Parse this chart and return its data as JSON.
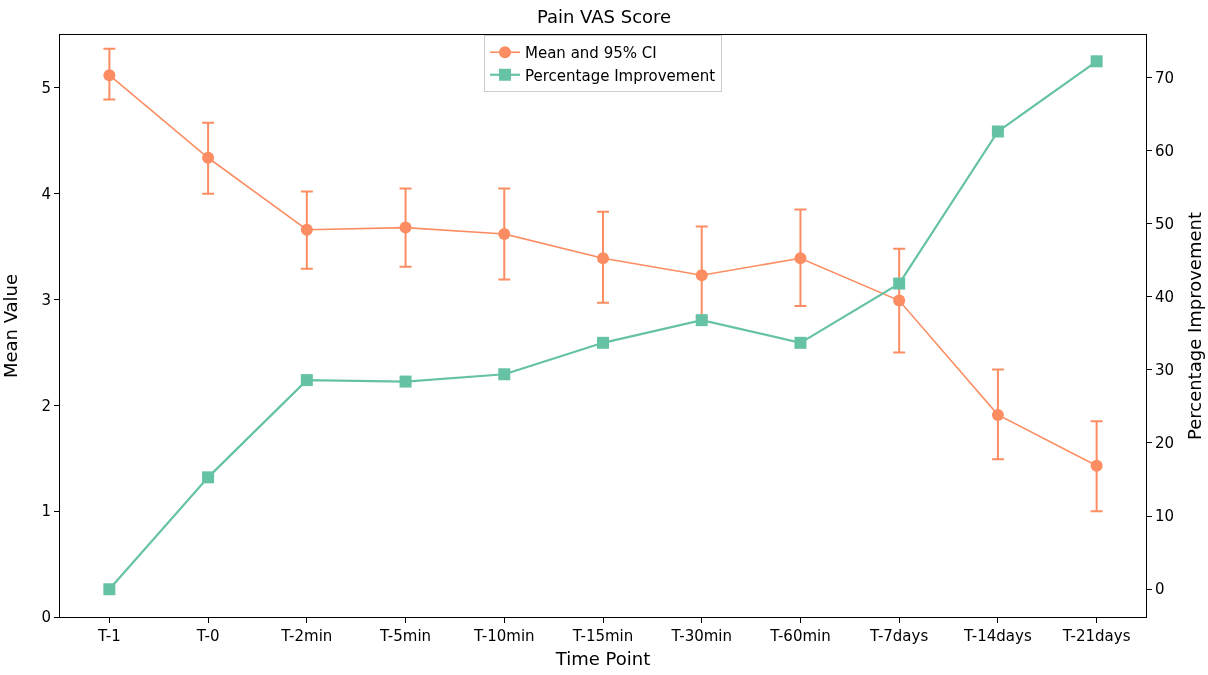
{
  "chart_data": {
    "type": "line",
    "title": "Pain VAS Score",
    "xlabel": "Time Point",
    "ylabel": "Mean Value",
    "y2label": "Percentage Improvement",
    "categories": [
      "T-1",
      "T-0",
      "T-2min",
      "T-5min",
      "T-10min",
      "T-15min",
      "T-30min",
      "T-60min",
      "T-7days",
      "T-14days",
      "T-21days"
    ],
    "series": [
      {
        "name": "Mean and 95% CI",
        "color": "#fc8d62",
        "marker": "circle",
        "values": [
          5.12,
          4.34,
          3.66,
          3.68,
          3.62,
          3.39,
          3.23,
          3.39,
          2.99,
          1.91,
          1.43
        ],
        "errors": [
          [
            4.89,
            5.37
          ],
          [
            4.0,
            4.67
          ],
          [
            3.29,
            4.02
          ],
          [
            3.31,
            4.05
          ],
          [
            3.19,
            4.05
          ],
          [
            2.97,
            3.83
          ],
          [
            2.83,
            3.69
          ],
          [
            2.94,
            3.85
          ],
          [
            2.5,
            3.48
          ],
          [
            1.49,
            2.34
          ],
          [
            1.0,
            1.85
          ]
        ]
      },
      {
        "name": "Percentage Improvement",
        "color": "#66c2a5",
        "marker": "square",
        "axis": "y2",
        "values": [
          0,
          15.3,
          28.6,
          28.4,
          29.4,
          33.7,
          36.8,
          33.7,
          41.8,
          62.6,
          72.2
        ]
      }
    ],
    "ylim": [
      0,
      5.5
    ],
    "yticks": [
      0,
      1,
      2,
      3,
      4,
      5
    ],
    "y2lim": [
      -3.8,
      75.8
    ],
    "y2ticks": [
      0,
      10,
      20,
      30,
      40,
      50,
      60,
      70
    ],
    "grid": false,
    "legend": "top",
    "line_style": "solid"
  }
}
